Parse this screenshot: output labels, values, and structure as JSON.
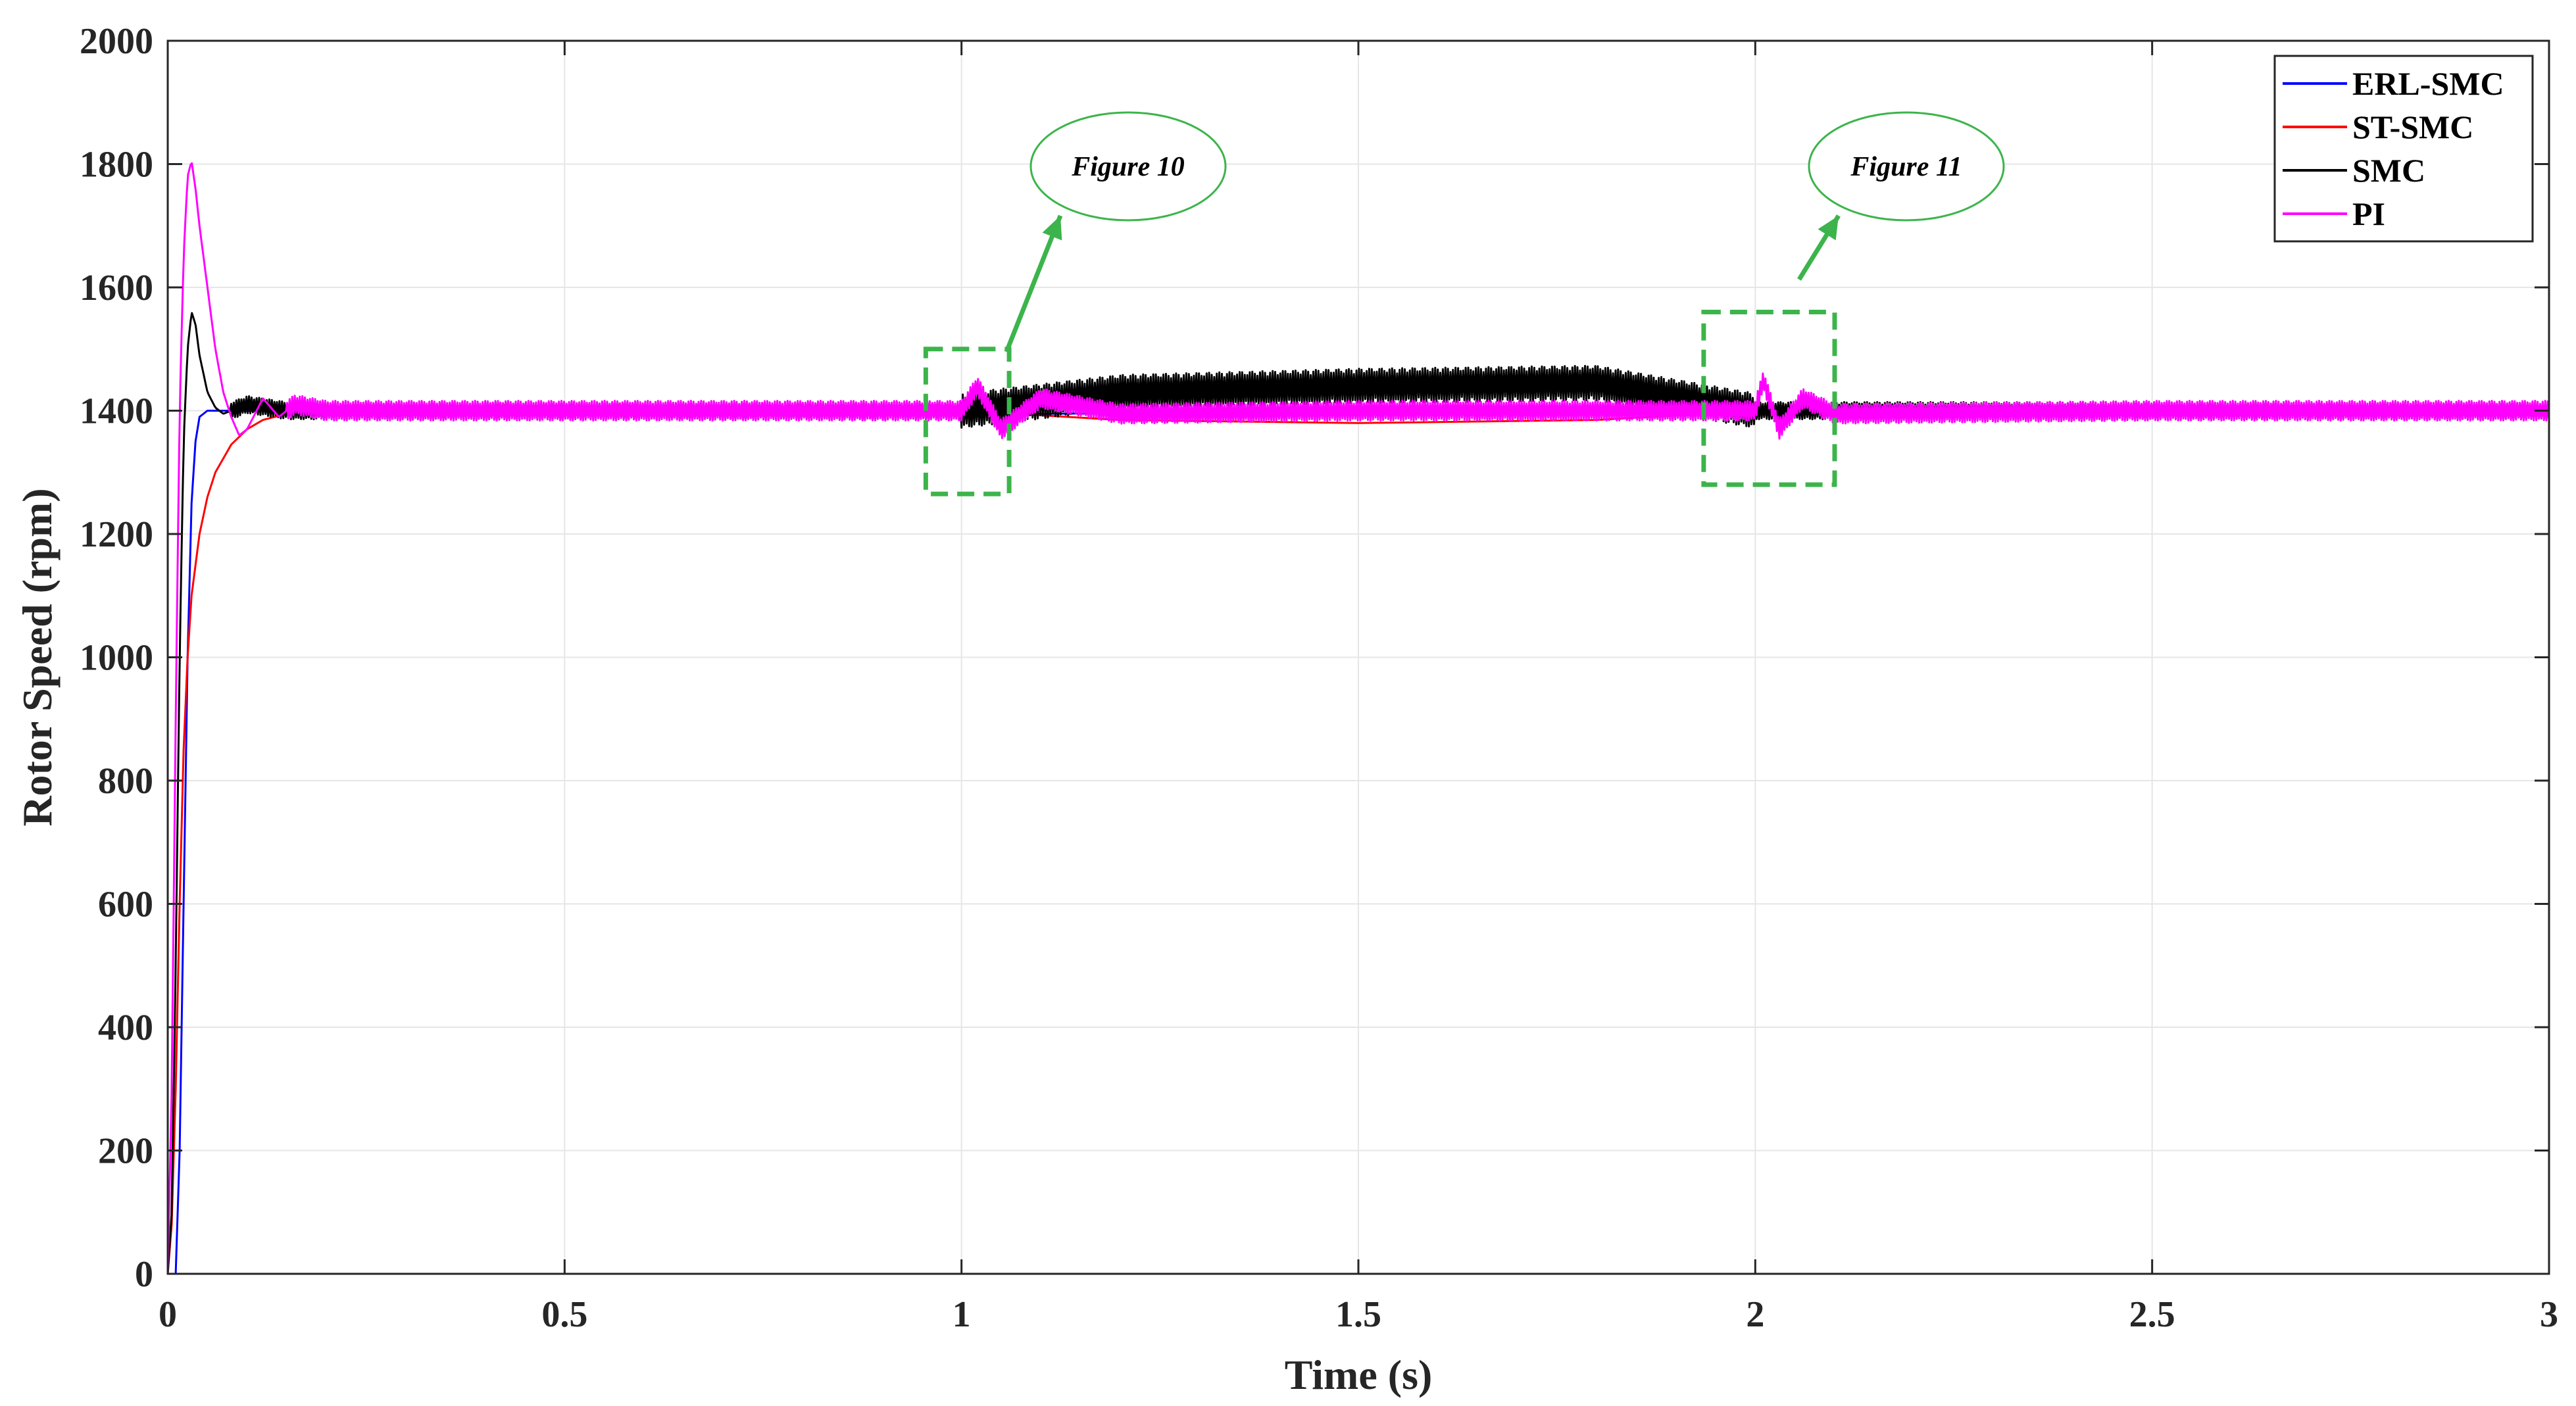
{
  "chart_data": {
    "type": "line",
    "title": "",
    "xlabel": "Time (s)",
    "ylabel": "Rotor Speed (rpm)",
    "xlim": [
      0,
      3
    ],
    "ylim": [
      0,
      2000
    ],
    "xticks": [
      0,
      0.5,
      1,
      1.5,
      2,
      2.5,
      3
    ],
    "xtick_labels": [
      "0",
      "0.5",
      "1",
      "1.5",
      "2",
      "2.5",
      "3"
    ],
    "yticks": [
      0,
      200,
      400,
      600,
      800,
      1000,
      1200,
      1400,
      1600,
      1800,
      2000
    ],
    "ytick_labels": [
      "0",
      "200",
      "400",
      "600",
      "800",
      "1000",
      "1200",
      "1400",
      "1600",
      "1800",
      "2000"
    ],
    "grid": true,
    "legend_position": "top-right",
    "series": [
      {
        "name": "ERL-SMC",
        "color": "#0000ff",
        "x": [
          0,
          0.005,
          0.01,
          0.015,
          0.02,
          0.025,
          0.03,
          0.035,
          0.04,
          0.05,
          0.06,
          0.08,
          0.1,
          0.2,
          0.5,
          1.0,
          1.1,
          1.5,
          2.0,
          2.1,
          2.5,
          3.0
        ],
        "y": [
          0,
          0,
          0,
          200,
          600,
          1000,
          1250,
          1350,
          1390,
          1400,
          1400,
          1400,
          1400,
          1400,
          1400,
          1400,
          1395,
          1398,
          1400,
          1400,
          1400,
          1400
        ]
      },
      {
        "name": "ST-SMC",
        "color": "#ff0000",
        "x": [
          0,
          0.005,
          0.01,
          0.015,
          0.02,
          0.025,
          0.03,
          0.04,
          0.05,
          0.06,
          0.08,
          0.1,
          0.12,
          0.15,
          0.2,
          0.3,
          0.5,
          1.0,
          1.2,
          1.5,
          1.8,
          2.0,
          2.1,
          2.5,
          3.0
        ],
        "y": [
          0,
          80,
          300,
          600,
          850,
          1000,
          1100,
          1200,
          1260,
          1300,
          1345,
          1370,
          1385,
          1395,
          1400,
          1400,
          1400,
          1400,
          1385,
          1380,
          1385,
          1400,
          1400,
          1400,
          1400
        ]
      },
      {
        "name": "SMC",
        "color": "#000000",
        "x": [
          0,
          0.005,
          0.01,
          0.015,
          0.02,
          0.025,
          0.03,
          0.035,
          0.04,
          0.05,
          0.06,
          0.07,
          0.08,
          0.1,
          0.15,
          0.2,
          0.5,
          1.0,
          1.2,
          1.5,
          1.8,
          2.0,
          2.05,
          2.1,
          2.5,
          3.0
        ],
        "y": [
          0,
          100,
          500,
          1000,
          1350,
          1500,
          1560,
          1540,
          1490,
          1430,
          1405,
          1395,
          1400,
          1410,
          1400,
          1400,
          1400,
          1400,
          1430,
          1440,
          1445,
          1400,
          1400,
          1400,
          1400,
          1400
        ],
        "ripple": [
          [
            0.08,
            3.0,
            14
          ],
          [
            1.0,
            2.0,
            28
          ]
        ]
      },
      {
        "name": "PI",
        "color": "#ff00ff",
        "x": [
          0,
          0.005,
          0.01,
          0.015,
          0.02,
          0.025,
          0.03,
          0.035,
          0.04,
          0.05,
          0.06,
          0.07,
          0.08,
          0.09,
          0.1,
          0.12,
          0.14,
          0.16,
          0.2,
          0.5,
          1.0,
          1.02,
          1.05,
          1.1,
          1.2,
          1.5,
          1.9,
          2.0,
          2.01,
          2.03,
          2.06,
          2.1,
          2.5,
          3.0
        ],
        "y": [
          0,
          300,
          900,
          1400,
          1650,
          1780,
          1805,
          1760,
          1700,
          1600,
          1500,
          1430,
          1390,
          1360,
          1370,
          1420,
          1390,
          1410,
          1400,
          1400,
          1400,
          1440,
          1370,
          1420,
          1395,
          1400,
          1400,
          1400,
          1450,
          1370,
          1420,
          1395,
          1400,
          1400
        ],
        "ripple": [
          [
            0.15,
            3.0,
            16
          ]
        ]
      }
    ],
    "annotations": [
      {
        "text": "Figure 10",
        "box_x": [
          0.955,
          1.06
        ],
        "box_y": [
          1265,
          1500
        ]
      },
      {
        "text": "Figure 11",
        "box_x": [
          1.935,
          2.1
        ],
        "box_y": [
          1280,
          1560
        ]
      }
    ]
  }
}
